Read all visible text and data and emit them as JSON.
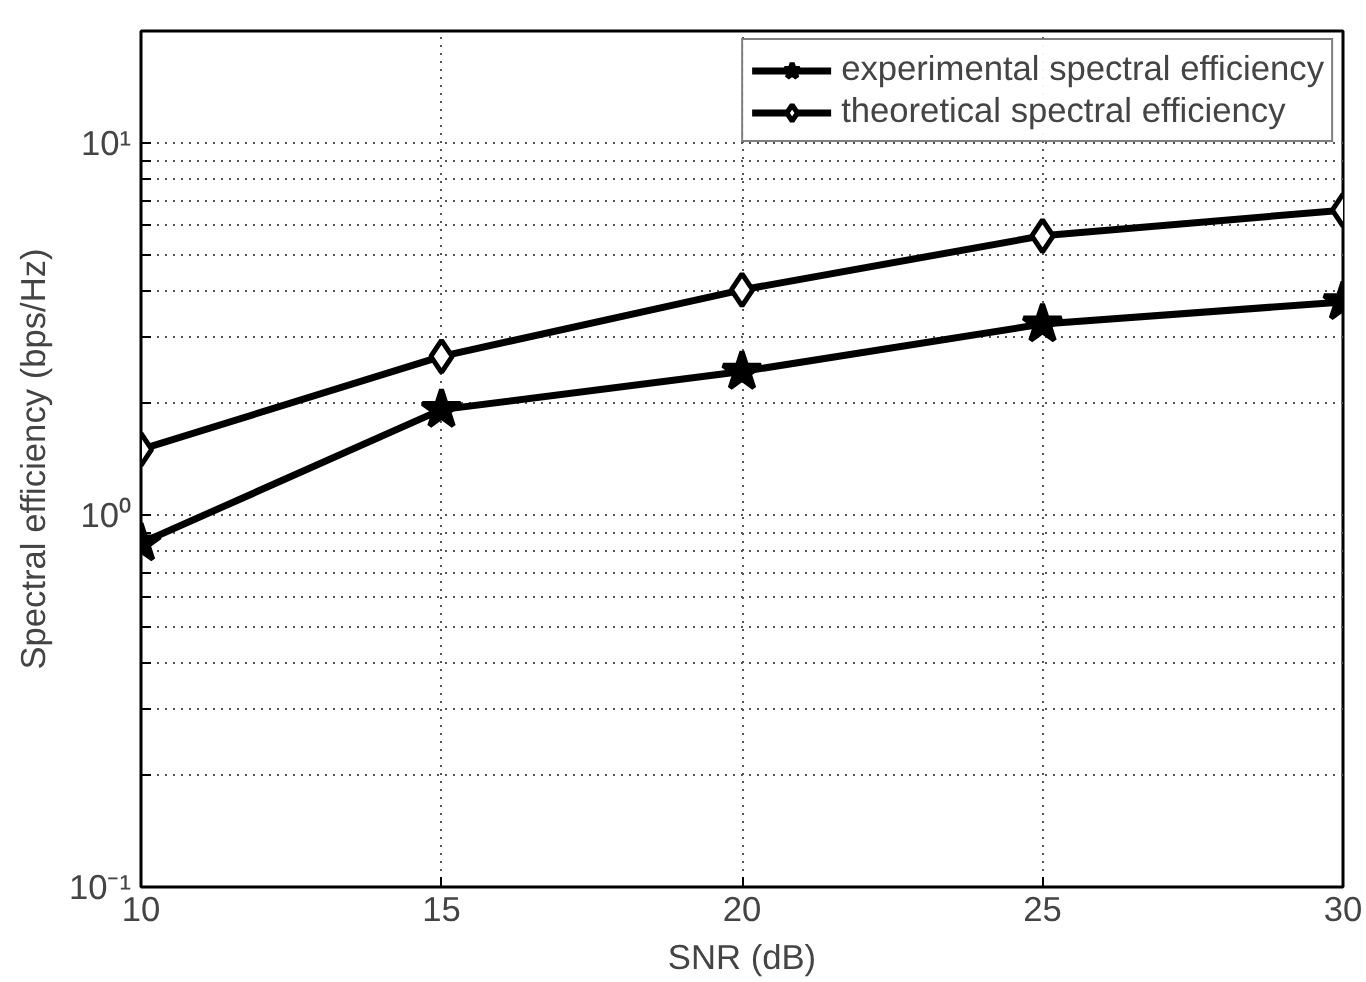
{
  "chart_data": {
    "type": "line",
    "xlabel": "SNR (dB)",
    "ylabel": "Spectral efficiency (bps/Hz)",
    "x": [
      10,
      15,
      20,
      25,
      30
    ],
    "series": [
      {
        "name": "experimental spectral efficiency",
        "color": "#000000",
        "marker": "star",
        "values": [
          0.84,
          1.92,
          2.43,
          3.26,
          3.74
        ]
      },
      {
        "name": "theoretical spectral efficiency",
        "color": "#000000",
        "marker": "diamond",
        "values": [
          1.5,
          2.67,
          4.03,
          5.63,
          6.6
        ]
      }
    ],
    "log": "y",
    "xlim": [
      10,
      30
    ],
    "ylim": [
      0.1,
      20
    ],
    "xticks": [
      10,
      15,
      20,
      25,
      30
    ],
    "yticks": [
      {
        "value": 0.1,
        "label": "10⁻¹"
      },
      {
        "value": 0.2,
        "label": null
      },
      {
        "value": 0.3,
        "label": null
      },
      {
        "value": 0.4,
        "label": null
      },
      {
        "value": 0.5,
        "label": null
      },
      {
        "value": 0.6,
        "label": null
      },
      {
        "value": 0.7,
        "label": null
      },
      {
        "value": 0.8,
        "label": null
      },
      {
        "value": 0.9,
        "label": null
      },
      {
        "value": 1,
        "label": "10⁰"
      },
      {
        "value": 2,
        "label": null
      },
      {
        "value": 3,
        "label": null
      },
      {
        "value": 4,
        "label": null
      },
      {
        "value": 5,
        "label": null
      },
      {
        "value": 6,
        "label": null
      },
      {
        "value": 7,
        "label": null
      },
      {
        "value": 8,
        "label": null
      },
      {
        "value": 9,
        "label": null
      },
      {
        "value": 10,
        "label": "10¹"
      },
      {
        "value": 20,
        "label": null
      }
    ],
    "grid": true,
    "legend": "top right",
    "line_style": "solid"
  }
}
